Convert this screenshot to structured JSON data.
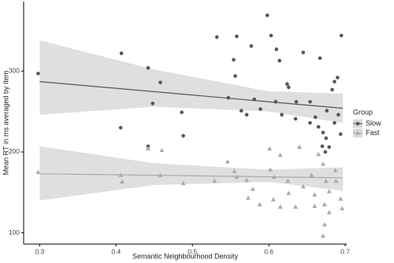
{
  "chart_data": {
    "type": "scatter",
    "x_label": "Semantic Neighbourhood Density",
    "y_label": "Mean RT in ms averaged by Item",
    "legend_title": "Group",
    "legend_position": "right",
    "xlim": [
      0.279,
      0.702
    ],
    "ylim": [
      86,
      386
    ],
    "xticks": [
      {
        "value": 0.3,
        "label": "0.3"
      },
      {
        "value": 0.4,
        "label": "0.4"
      },
      {
        "value": 0.5,
        "label": "0.5"
      },
      {
        "value": 0.6,
        "label": "0.6"
      },
      {
        "value": 0.7,
        "label": "0.7"
      }
    ],
    "yticks": [
      100,
      200,
      300
    ],
    "grid": false,
    "band_color": "#d9d9d9",
    "series": [
      {
        "name": "Slow",
        "color": "#555555",
        "marker": "circle",
        "x": [
          0.298,
          0.407,
          0.406,
          0.442,
          0.458,
          0.448,
          0.442,
          0.486,
          0.488,
          0.532,
          0.558,
          0.554,
          0.556,
          0.547,
          0.577,
          0.598,
          0.603,
          0.61,
          0.614,
          0.624,
          0.626,
          0.645,
          0.667,
          0.695,
          0.69,
          0.686,
          0.683,
          0.581,
          0.589,
          0.571,
          0.564,
          0.609,
          0.617,
          0.636,
          0.635,
          0.654,
          0.654,
          0.661,
          0.665,
          0.671,
          0.675,
          0.679,
          0.674,
          0.686,
          0.691,
          0.694,
          0.67,
          0.676
        ],
        "values": [
          297,
          322,
          230,
          304,
          286,
          260,
          207,
          249,
          220,
          342,
          343,
          314,
          294,
          267,
          331,
          369,
          344,
          327,
          313,
          284,
          280,
          323,
          316,
          344,
          292,
          287,
          277,
          265,
          253,
          246,
          251,
          262,
          246,
          262,
          241,
          262,
          236,
          243,
          231,
          224,
          217,
          206,
          200,
          236,
          246,
          222,
          207,
          251
        ],
        "fit": {
          "x": [
            0.3,
            0.697
          ],
          "y": [
            287,
            254
          ]
        },
        "band": {
          "x": [
            0.3,
            0.45,
            0.6,
            0.697
          ],
          "upper": [
            338,
            302,
            275,
            272
          ],
          "lower": [
            246,
            256,
            250,
            236
          ]
        }
      },
      {
        "name": "Fast",
        "color": "#aaaaaa",
        "marker": "triangle",
        "x": [
          0.298,
          0.406,
          0.408,
          0.442,
          0.46,
          0.458,
          0.488,
          0.529,
          0.555,
          0.558,
          0.571,
          0.579,
          0.573,
          0.588,
          0.602,
          0.607,
          0.606,
          0.615,
          0.625,
          0.626,
          0.635,
          0.645,
          0.656,
          0.66,
          0.665,
          0.671,
          0.675,
          0.679,
          0.673,
          0.679,
          0.673,
          0.671,
          0.688,
          0.694,
          0.696,
          0.601,
          0.615,
          0.687,
          0.66,
          0.546,
          0.64
        ],
        "values": [
          175,
          171,
          163,
          204,
          202,
          171,
          161,
          164,
          176,
          169,
          165,
          154,
          143,
          135,
          178,
          169,
          141,
          132,
          164,
          149,
          132,
          157,
          171,
          147,
          197,
          185,
          164,
          151,
          135,
          125,
          110,
          96,
          164,
          142,
          130,
          204,
          196,
          177,
          133,
          188,
          206
        ],
        "fit": {
          "x": [
            0.3,
            0.697
          ],
          "y": [
            173,
            168
          ]
        },
        "band": {
          "x": [
            0.3,
            0.45,
            0.6,
            0.697
          ],
          "upper": [
            207,
            186,
            178,
            181
          ],
          "lower": [
            140,
            159,
            163,
            152
          ]
        }
      }
    ]
  }
}
